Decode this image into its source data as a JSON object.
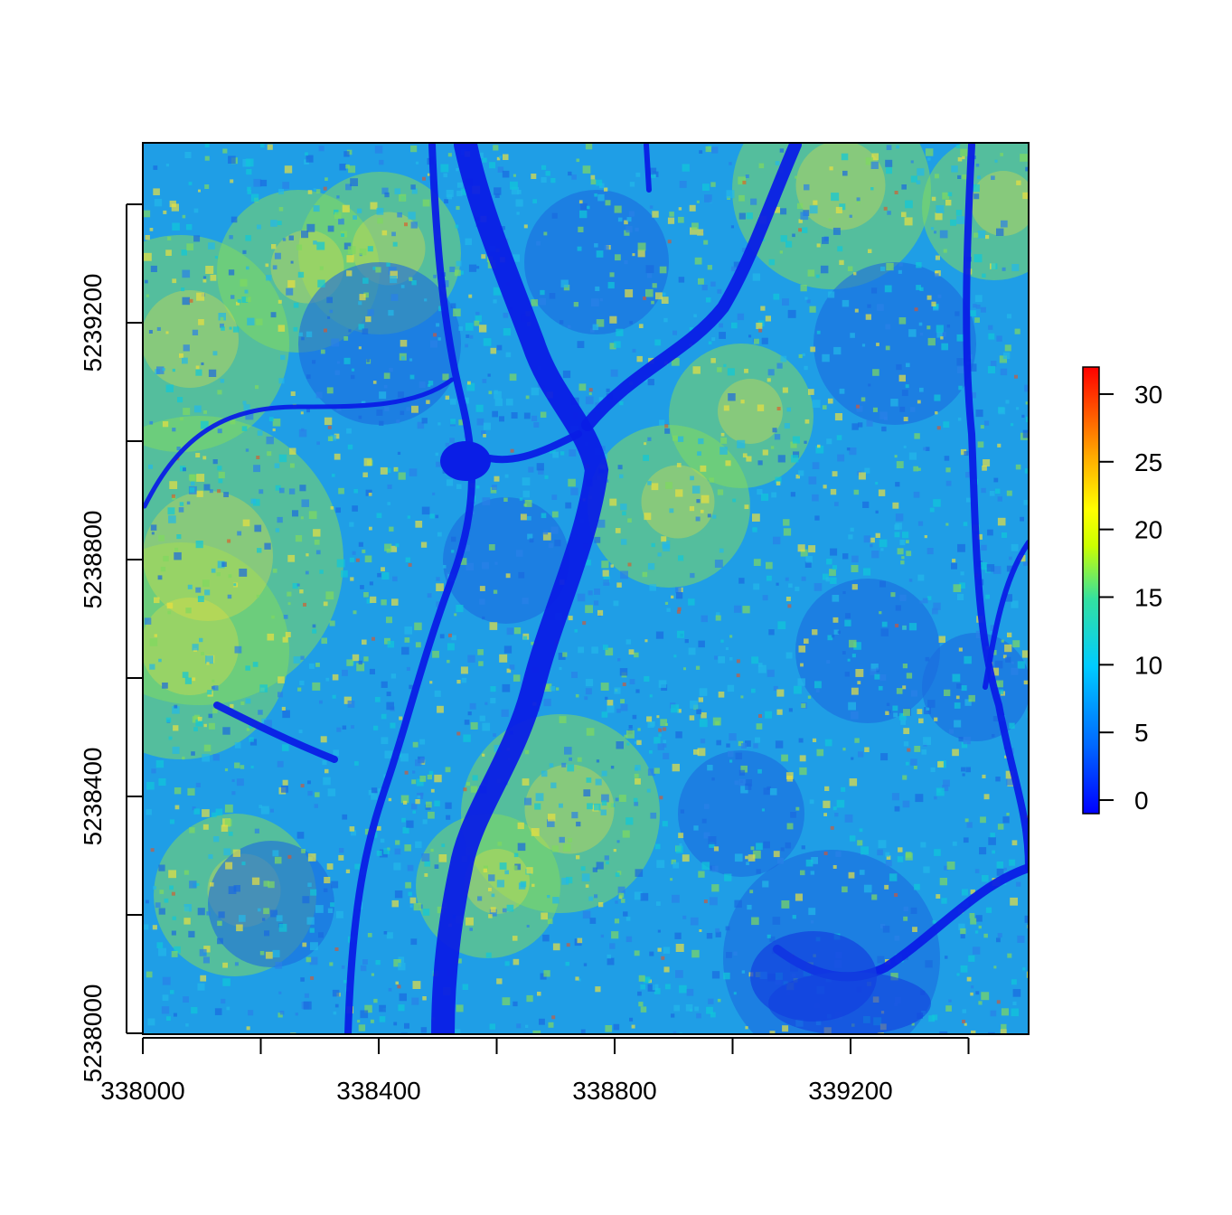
{
  "map": {
    "type": "raster",
    "x_axis": {
      "range": [
        338000,
        339500
      ],
      "ticks": [
        338000,
        338200,
        338400,
        338600,
        338800,
        339000,
        339200,
        339400
      ],
      "labels": [
        "338000",
        "338400",
        "338800",
        "339200"
      ],
      "label_values": [
        338000,
        338400,
        338800,
        339200
      ]
    },
    "y_axis": {
      "range": [
        5238000,
        5239500
      ],
      "ticks": [
        5238000,
        5238200,
        5238400,
        5238600,
        5238800,
        5239000,
        5239200,
        5239400
      ],
      "labels": [
        "5238000",
        "5238400",
        "5238800",
        "5239200"
      ],
      "label_values": [
        5238000,
        5238400,
        5238800,
        5239200
      ]
    },
    "legend": {
      "placement": "right",
      "range": [
        -1,
        32
      ],
      "ticks": [
        "0",
        "5",
        "10",
        "15",
        "20",
        "25",
        "30"
      ],
      "tick_values": [
        0,
        5,
        10,
        15,
        20,
        25,
        30
      ],
      "colors": [
        "#0000ff",
        "#0077ff",
        "#00ccff",
        "#33e0a0",
        "#aaff00",
        "#ffff00",
        "#ffaa00",
        "#ff4400",
        "#ff0000"
      ]
    },
    "palette": {
      "water": "#0a1ee6",
      "low": "#1a6ae0",
      "mid": "#22b8e8",
      "high": "#7fd860",
      "peak": "#e8e040"
    }
  }
}
